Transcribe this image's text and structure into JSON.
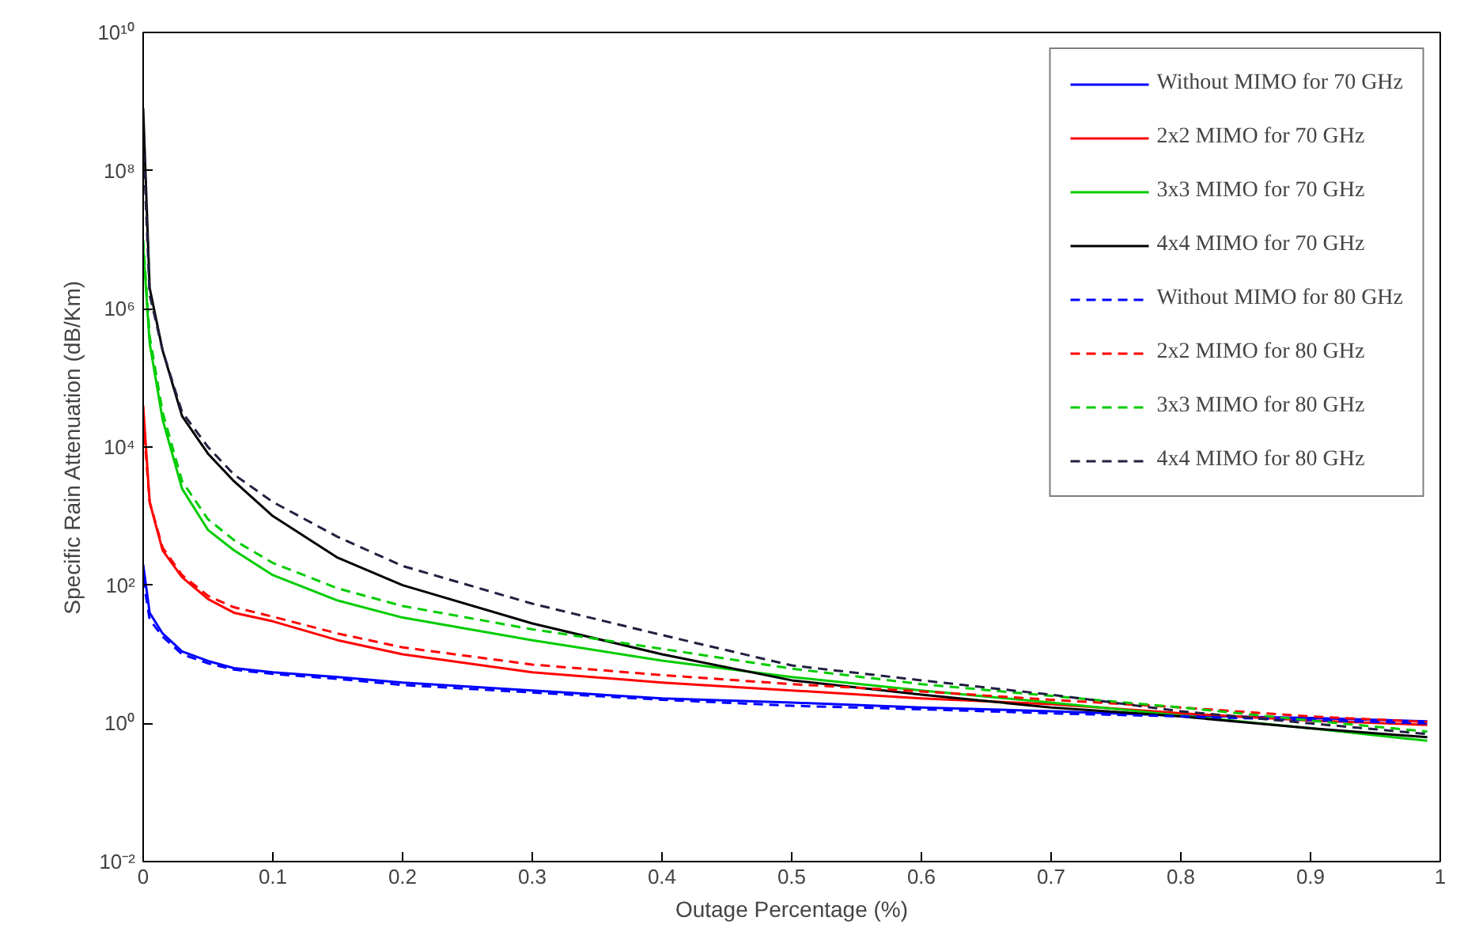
{
  "chart_data": {
    "type": "line",
    "xlabel": "Outage Percentage (%)",
    "ylabel": "Specific Rain Attenuation (dB/Km)",
    "log": "y",
    "grid": false,
    "legend": "top right",
    "marker": "none",
    "x": [
      0,
      0.005,
      0.015,
      0.03,
      0.05,
      0.07,
      0.1,
      0.15,
      0.2,
      0.3,
      0.4,
      0.5,
      0.6,
      0.7,
      0.8,
      0.9,
      0.99
    ],
    "xlim": [
      0,
      1
    ],
    "xticks": [
      0,
      0.1,
      0.2,
      0.3,
      0.4,
      0.5,
      0.6,
      0.7,
      0.8,
      0.9,
      1
    ],
    "ylim": [
      0.01,
      10000000000
    ],
    "yticks": [
      {
        "value": 0.01,
        "label": "10⁻²"
      },
      {
        "value": 1,
        "label": "10⁰"
      },
      {
        "value": 100,
        "label": "10²"
      },
      {
        "value": 10000,
        "label": "10⁴"
      },
      {
        "value": 1000000,
        "label": "10⁶"
      },
      {
        "value": 100000000,
        "label": "10⁸"
      },
      {
        "value": 10000000000,
        "label": "10¹⁰"
      }
    ],
    "series": [
      {
        "name": "Without MIMO for 70 GHz",
        "color": "#0000ff",
        "line_style": "solid",
        "values": [
          200,
          40,
          20,
          11,
          8,
          6.3,
          5.5,
          4.7,
          3.9,
          3.0,
          2.3,
          2.0,
          1.7,
          1.5,
          1.3,
          1.2,
          1.07
        ]
      },
      {
        "name": "2x2 MIMO for 70 GHz",
        "color": "#ff0000",
        "line_style": "solid",
        "values": [
          40000,
          1600,
          320,
          130,
          63,
          40,
          30,
          16,
          10,
          5.5,
          3.9,
          3.0,
          2.3,
          1.9,
          1.4,
          1.1,
          0.95
        ]
      },
      {
        "name": "3x3 MIMO for 70 GHz",
        "color": "#00cc00",
        "line_style": "solid",
        "values": [
          8000000,
          320000,
          25000,
          2500,
          630,
          320,
          140,
          60,
          34,
          16,
          8.1,
          4.7,
          3.0,
          2.0,
          1.3,
          0.85,
          0.56
        ]
      },
      {
        "name": "4x4 MIMO for 70 GHz",
        "color": "#000000",
        "line_style": "solid",
        "values": [
          800000000,
          2000000,
          250000,
          28000,
          8000,
          3200,
          1000,
          250,
          100,
          28,
          10,
          4.2,
          2.6,
          1.7,
          1.26,
          0.85,
          0.63
        ]
      },
      {
        "name": "Without MIMO for 80 GHz",
        "color": "#0000ff",
        "line_style": "dashed",
        "values": [
          126,
          32,
          18,
          10,
          7.4,
          6,
          5.2,
          4.4,
          3.6,
          2.8,
          2.2,
          1.8,
          1.6,
          1.4,
          1.26,
          1.12,
          1.0
        ]
      },
      {
        "name": "2x2 MIMO for 80 GHz",
        "color": "#ff0000",
        "line_style": "dashed",
        "values": [
          25000,
          1600,
          350,
          140,
          70,
          48,
          35,
          20,
          12.6,
          7.1,
          5.0,
          3.7,
          2.9,
          2.2,
          1.7,
          1.26,
          1.05
        ]
      },
      {
        "name": "3x3 MIMO for 80 GHz",
        "color": "#00cc00",
        "line_style": "dashed",
        "values": [
          10000000,
          400000,
          32000,
          3200,
          900,
          450,
          210,
          90,
          50,
          23,
          12,
          6.2,
          3.7,
          2.5,
          1.7,
          1.1,
          0.76
        ]
      },
      {
        "name": "4x4 MIMO for 80 GHz",
        "color": "#202040",
        "line_style": "dashed",
        "values": [
          300000000,
          1600000,
          250000,
          32000,
          10000,
          4000,
          1600,
          500,
          190,
          54,
          19,
          6.9,
          4.2,
          2.6,
          1.5,
          1.0,
          0.7
        ]
      }
    ]
  }
}
